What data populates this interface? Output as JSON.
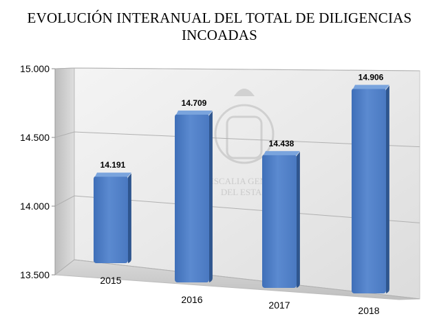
{
  "chart_data": {
    "type": "bar",
    "title_lines": [
      "EVOLUCIÓN INTERANUAL DEL TOTAL DE DILIGENCIAS",
      "INCOADAS"
    ],
    "categories": [
      "2015",
      "2016",
      "2017",
      "2018"
    ],
    "values": [
      14191,
      14709,
      14438,
      14906
    ],
    "value_labels": [
      "14.191",
      "14.709",
      "14.438",
      "14.906"
    ],
    "yticks": [
      13500,
      14000,
      14500,
      15000
    ],
    "ytick_labels": [
      "13.500",
      "14.000",
      "14.500",
      "15.000"
    ],
    "ylim": [
      13500,
      15000
    ],
    "grid": true,
    "legend": "none",
    "watermark_text": [
      "FISCALIA GENERAL",
      "DEL ESTADO"
    ],
    "bar_color": "#4f7fc6",
    "bar_side_color": "#2f568f",
    "bar_top_color": "#7aa4dd"
  }
}
